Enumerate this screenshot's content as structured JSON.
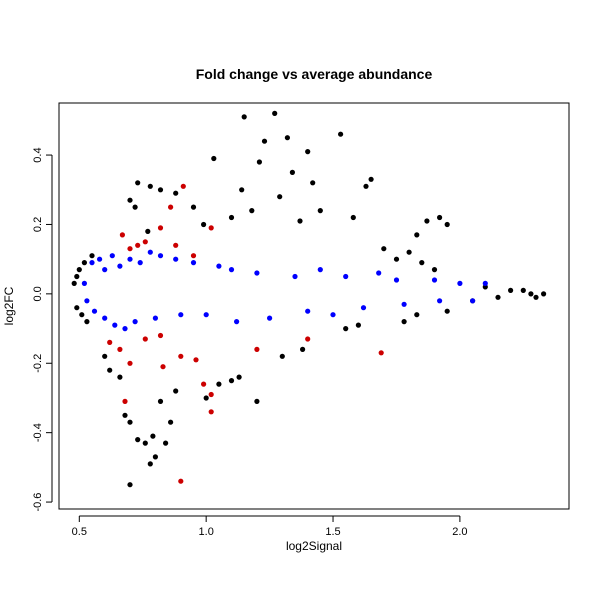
{
  "chart_data": {
    "type": "scatter",
    "title": "Fold change vs average abundance",
    "xlabel": "log2Signal",
    "ylabel": "log2FC",
    "xlim": [
      0.42,
      2.43
    ],
    "ylim": [
      -0.62,
      0.55
    ],
    "xticks": [
      0.5,
      1.0,
      1.5,
      2.0
    ],
    "xtick_labels": [
      "0.5",
      "1.0",
      "1.5",
      "2.0"
    ],
    "yticks": [
      -0.6,
      -0.4,
      -0.2,
      0.0,
      0.2,
      0.4
    ],
    "ytick_labels": [
      "-0.6",
      "-0.4",
      "-0.2",
      "0.0",
      "0.2",
      "0.4"
    ],
    "grid": false,
    "legend": "none",
    "colors": {
      "background": "#ffffff",
      "points": "#000000",
      "blue": "#0000ff",
      "red": "#cc0000"
    },
    "series": [
      {
        "color": "#000000",
        "points": [
          [
            1.15,
            0.51
          ],
          [
            1.27,
            0.52
          ],
          [
            1.53,
            0.46
          ],
          [
            1.32,
            0.45
          ],
          [
            1.23,
            0.44
          ],
          [
            1.4,
            0.41
          ],
          [
            1.03,
            0.39
          ],
          [
            1.21,
            0.38
          ],
          [
            1.65,
            0.33
          ],
          [
            1.63,
            0.31
          ],
          [
            1.42,
            0.32
          ],
          [
            1.34,
            0.35
          ],
          [
            1.29,
            0.28
          ],
          [
            1.14,
            0.3
          ],
          [
            0.73,
            0.32
          ],
          [
            0.78,
            0.31
          ],
          [
            0.82,
            0.3
          ],
          [
            1.87,
            0.21
          ],
          [
            1.92,
            0.22
          ],
          [
            1.95,
            0.2
          ],
          [
            1.83,
            0.17
          ],
          [
            0.7,
            0.27
          ],
          [
            0.88,
            0.29
          ],
          [
            0.95,
            0.25
          ],
          [
            1.45,
            0.24
          ],
          [
            1.58,
            0.22
          ],
          [
            1.37,
            0.21
          ],
          [
            1.1,
            0.22
          ],
          [
            1.18,
            0.24
          ],
          [
            0.99,
            0.2
          ],
          [
            0.72,
            0.25
          ],
          [
            0.77,
            0.18
          ],
          [
            0.68,
            -0.35
          ],
          [
            0.7,
            -0.37
          ],
          [
            0.73,
            -0.42
          ],
          [
            0.76,
            -0.43
          ],
          [
            0.79,
            -0.41
          ],
          [
            0.8,
            -0.47
          ],
          [
            0.78,
            -0.49
          ],
          [
            0.7,
            -0.55
          ],
          [
            0.84,
            -0.43
          ],
          [
            0.86,
            -0.37
          ],
          [
            1.2,
            -0.31
          ],
          [
            0.82,
            -0.31
          ],
          [
            0.88,
            -0.28
          ],
          [
            1.0,
            -0.3
          ],
          [
            1.05,
            -0.26
          ],
          [
            1.1,
            -0.25
          ],
          [
            1.13,
            -0.24
          ],
          [
            0.66,
            -0.24
          ],
          [
            0.62,
            -0.22
          ],
          [
            0.6,
            -0.18
          ],
          [
            1.3,
            -0.18
          ],
          [
            1.38,
            -0.16
          ],
          [
            1.55,
            -0.1
          ],
          [
            1.6,
            -0.09
          ],
          [
            0.48,
            0.03
          ],
          [
            0.49,
            0.05
          ],
          [
            0.49,
            -0.04
          ],
          [
            0.5,
            0.07
          ],
          [
            0.51,
            -0.06
          ],
          [
            0.52,
            0.09
          ],
          [
            0.53,
            -0.08
          ],
          [
            0.55,
            0.11
          ],
          [
            2.25,
            0.01
          ],
          [
            2.28,
            0.0
          ],
          [
            2.3,
            -0.01
          ],
          [
            2.33,
            0.0
          ],
          [
            2.2,
            0.01
          ],
          [
            2.15,
            -0.01
          ],
          [
            2.1,
            0.02
          ],
          [
            2.05,
            -0.02
          ],
          [
            1.8,
            0.12
          ],
          [
            1.75,
            0.1
          ],
          [
            1.7,
            0.13
          ],
          [
            1.85,
            0.09
          ],
          [
            1.9,
            0.07
          ],
          [
            1.78,
            -0.08
          ],
          [
            1.83,
            -0.06
          ],
          [
            1.95,
            -0.05
          ]
        ]
      },
      {
        "color": "#0000ff",
        "points": [
          [
            0.55,
            0.09
          ],
          [
            0.58,
            0.1
          ],
          [
            0.6,
            0.07
          ],
          [
            0.63,
            0.11
          ],
          [
            0.66,
            0.08
          ],
          [
            0.7,
            0.1
          ],
          [
            0.74,
            0.09
          ],
          [
            0.78,
            0.12
          ],
          [
            0.82,
            0.11
          ],
          [
            0.88,
            0.1
          ],
          [
            0.95,
            0.09
          ],
          [
            1.05,
            0.08
          ],
          [
            1.1,
            0.07
          ],
          [
            1.2,
            0.06
          ],
          [
            1.35,
            0.05
          ],
          [
            1.45,
            0.07
          ],
          [
            1.55,
            0.05
          ],
          [
            1.68,
            0.06
          ],
          [
            1.75,
            0.04
          ],
          [
            1.9,
            0.04
          ],
          [
            2.0,
            0.03
          ],
          [
            2.1,
            0.03
          ],
          [
            0.56,
            -0.05
          ],
          [
            0.6,
            -0.07
          ],
          [
            0.64,
            -0.09
          ],
          [
            0.68,
            -0.1
          ],
          [
            0.72,
            -0.08
          ],
          [
            0.8,
            -0.07
          ],
          [
            0.9,
            -0.06
          ],
          [
            1.0,
            -0.06
          ],
          [
            1.12,
            -0.08
          ],
          [
            1.25,
            -0.07
          ],
          [
            1.4,
            -0.05
          ],
          [
            1.5,
            -0.06
          ],
          [
            1.62,
            -0.04
          ],
          [
            1.78,
            -0.03
          ],
          [
            1.92,
            -0.02
          ],
          [
            2.05,
            -0.02
          ],
          [
            0.52,
            0.03
          ],
          [
            0.53,
            -0.02
          ]
        ]
      },
      {
        "color": "#cc0000",
        "points": [
          [
            0.91,
            0.31
          ],
          [
            0.86,
            0.25
          ],
          [
            0.82,
            0.19
          ],
          [
            0.76,
            0.15
          ],
          [
            0.73,
            0.14
          ],
          [
            0.7,
            0.13
          ],
          [
            0.67,
            0.17
          ],
          [
            0.88,
            0.14
          ],
          [
            0.95,
            0.11
          ],
          [
            1.02,
            0.19
          ],
          [
            0.68,
            -0.31
          ],
          [
            0.9,
            -0.54
          ],
          [
            0.99,
            -0.26
          ],
          [
            1.02,
            -0.29
          ],
          [
            1.02,
            -0.34
          ],
          [
            0.96,
            -0.19
          ],
          [
            0.83,
            -0.21
          ],
          [
            0.7,
            -0.2
          ],
          [
            0.66,
            -0.16
          ],
          [
            0.62,
            -0.14
          ],
          [
            1.2,
            -0.16
          ],
          [
            1.4,
            -0.13
          ],
          [
            1.69,
            -0.17
          ],
          [
            0.9,
            -0.18
          ],
          [
            0.82,
            -0.12
          ],
          [
            0.76,
            -0.13
          ]
        ]
      }
    ]
  }
}
